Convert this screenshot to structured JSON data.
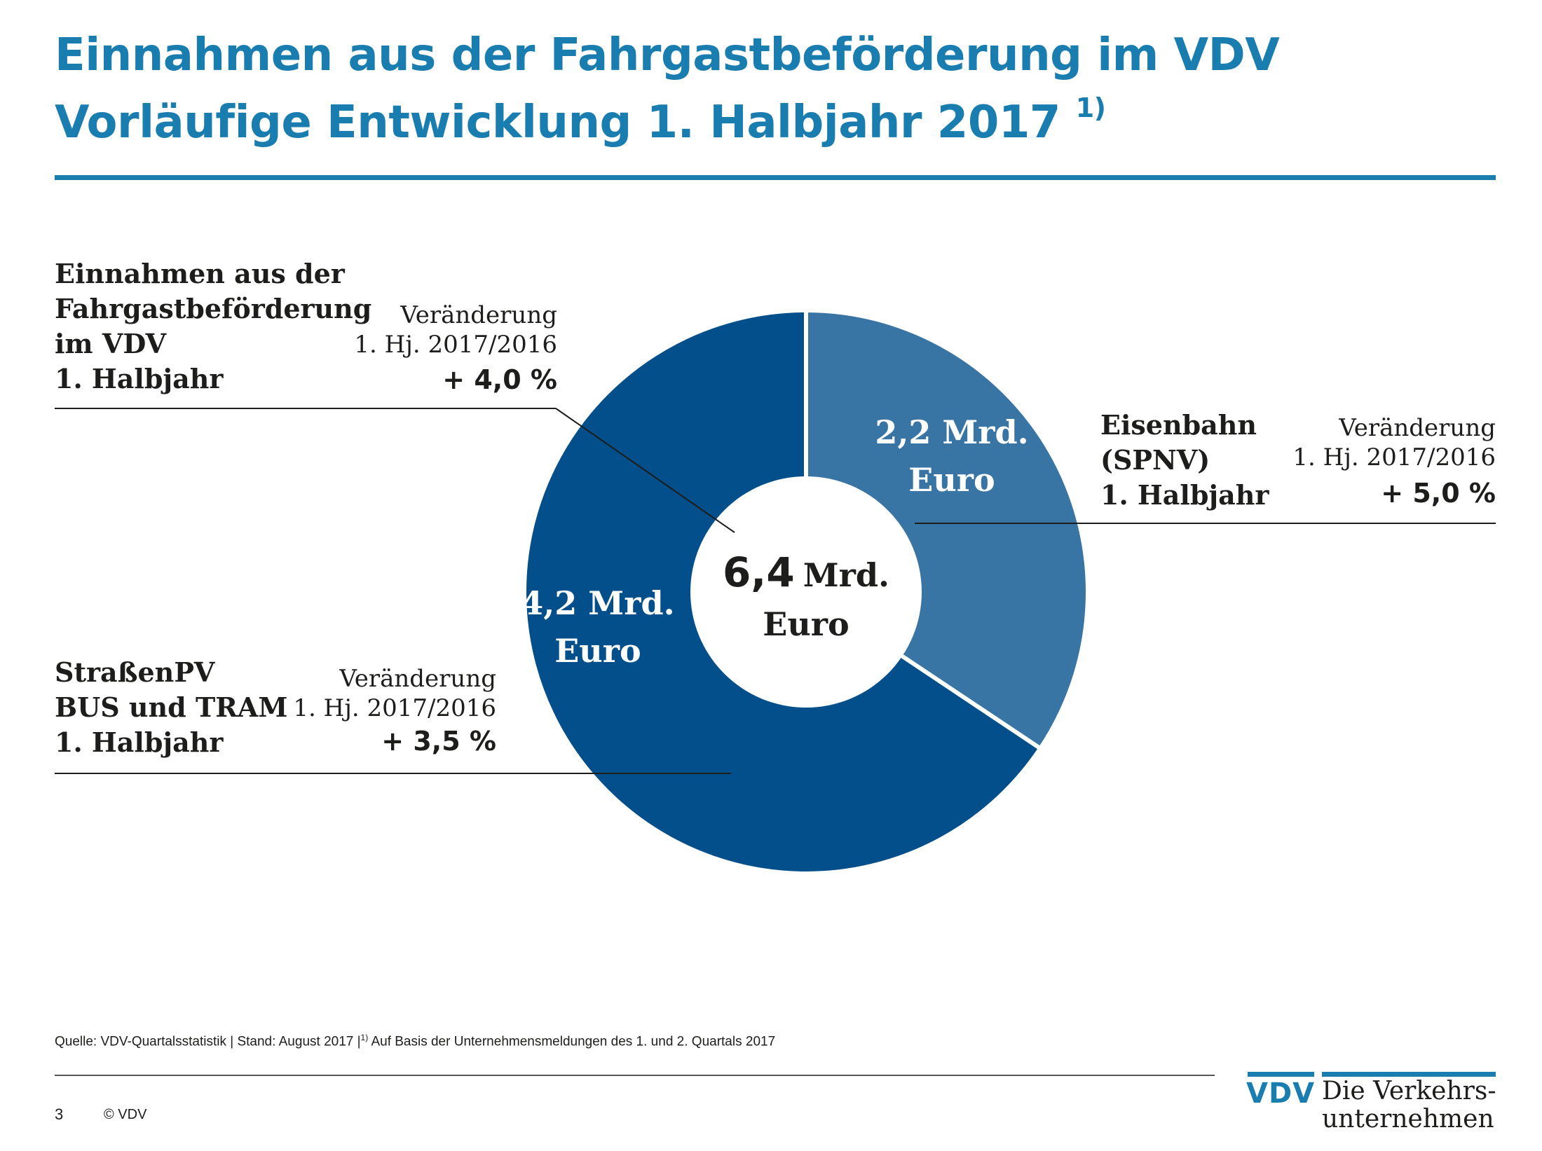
{
  "title": {
    "line1": "Einnahmen aus der Fahrgastbeförderung im VDV",
    "line2": "Vorläufige Entwicklung 1. Halbjahr 2017",
    "line2_sup": "1)"
  },
  "chart_data": {
    "type": "pie",
    "unit": "Mrd. Euro",
    "slices": [
      {
        "name": "Eisenbahn (SPNV)",
        "value": 2.2,
        "label_value": "2,2 Mrd.",
        "label_unit": "Euro",
        "color": "#3874a4"
      },
      {
        "name": "StraßenPV BUS und TRAM",
        "value": 4.2,
        "label_value": "4,2  Mrd.",
        "label_unit": "Euro",
        "color": "#034f8b"
      }
    ],
    "total": {
      "value": 6.4,
      "number": "6,4",
      "unit_line1": "Mrd.",
      "unit_line2": "Euro"
    }
  },
  "callouts": {
    "total": {
      "heading": [
        "Einnahmen aus der",
        "Fahrgastbeförderung",
        "im VDV",
        "1. Halbjahr"
      ],
      "change_label_1": "Veränderung",
      "change_label_2": "1. Hj. 2017/2016",
      "change_value": "+ 4,0 %"
    },
    "rail": {
      "heading": [
        "Eisenbahn",
        "(SPNV)",
        "1. Halbjahr"
      ],
      "change_label_1": "Veränderung",
      "change_label_2": "1. Hj. 2017/2016",
      "change_value": "+ 5,0 %"
    },
    "road": {
      "heading": [
        "StraßenPV",
        "BUS und TRAM",
        "1. Halbjahr"
      ],
      "change_label_1": "Veränderung",
      "change_label_2": "1. Hj. 2017/2016",
      "change_value": "+ 3,5 %"
    }
  },
  "footer": {
    "source_pre": "Quelle: VDV-Quartalsstatistik | Stand: August 2017 |",
    "source_sup": "1)",
    "source_post": " Auf Basis der Unternehmensmeldungen des 1. und 2. Quartals 2017",
    "page_number": "3",
    "copyright": "© VDV"
  },
  "logo": {
    "abbr": "VDV",
    "line1": "Die Verkehrs-",
    "line2": "unternehmen"
  },
  "colors": {
    "accent": "#1a7db0",
    "dark_slice": "#034f8b",
    "light_slice": "#3874a4"
  }
}
